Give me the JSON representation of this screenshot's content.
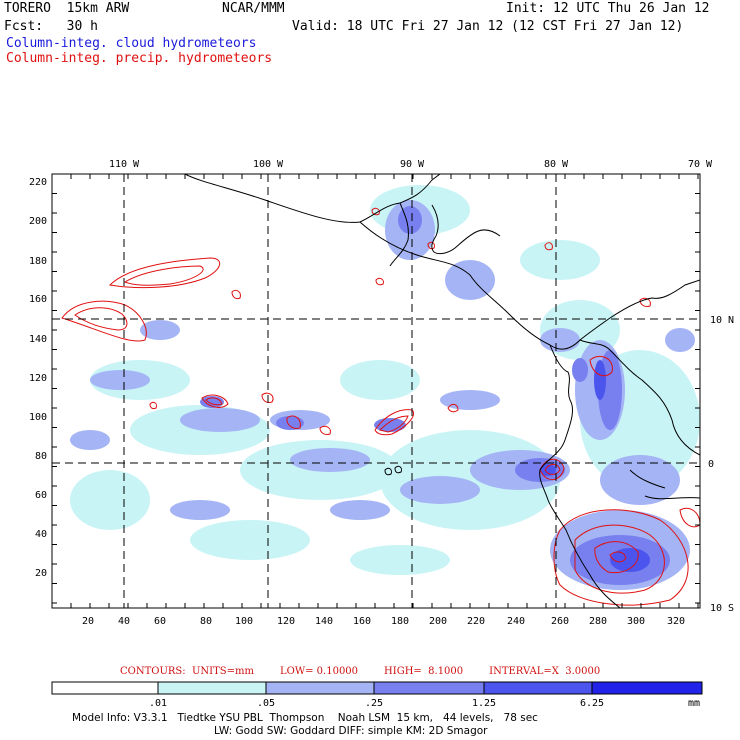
{
  "header": {
    "model": "TORERO  15km ARW",
    "org": "NCAR/MMM",
    "init": "Init: 12 UTC Thu 26 Jan 12",
    "fcst": "Fcst:   30 h",
    "valid": "Valid: 18 UTC Fri 27 Jan 12 (12 CST Fri 27 Jan 12)",
    "field_cloud": "Column-integ. cloud hydrometeors",
    "field_precip": "Column-integ. precip. hydrometeors"
  },
  "axes": {
    "lon_labels": [
      "110 W",
      "100 W",
      "90 W",
      "80 W",
      "70 W"
    ],
    "lat_labels": [
      "10 N",
      "0",
      "10 S"
    ],
    "x_ticks": [
      "20",
      "40",
      "60",
      "80",
      "100",
      "120",
      "140",
      "160",
      "180",
      "200",
      "220",
      "240",
      "260",
      "280",
      "300",
      "320"
    ],
    "y_ticks": [
      "220",
      "200",
      "180",
      "160",
      "140",
      "120",
      "100",
      "80",
      "60",
      "40",
      "20"
    ]
  },
  "contours": {
    "units": "CONTOURS:  UNITS=mm",
    "low": "LOW= 0.10000",
    "high": "HIGH=  8.1000",
    "interval": "INTERVAL=X  3.0000"
  },
  "colorbar": {
    "labels": [
      ".01",
      ".05",
      ".25",
      "1.25",
      "6.25"
    ],
    "unit": "mm",
    "colors": [
      "#ffffff",
      "#c8f4f6",
      "#a4b4f4",
      "#7880f0",
      "#4c54ee",
      "#2222e8"
    ]
  },
  "model_info": {
    "line1": "Model Info: V3.3.1   Tiedtke YSU PBL  Thompson    Noah LSM  15 km,   44 levels,   78 sec",
    "line2": "LW: Godd SW: Goddard DIFF: simple KM: 2D Smagor"
  }
}
